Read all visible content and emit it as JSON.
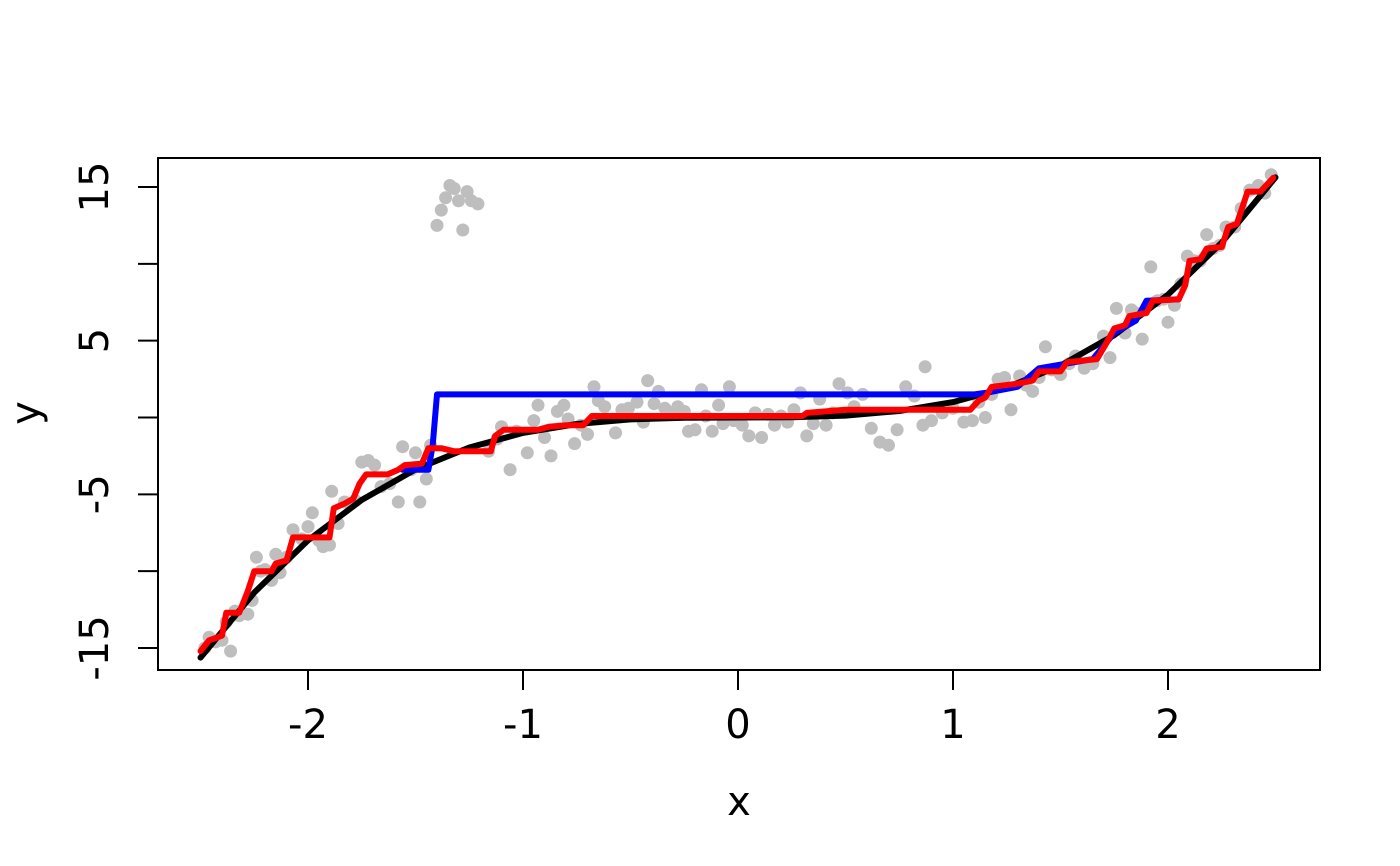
{
  "chart_data": {
    "type": "scatter",
    "title": "",
    "xlabel": "x",
    "ylabel": "y",
    "xlim": [
      -2.5,
      2.5
    ],
    "ylim": [
      -15,
      15
    ],
    "x_ticks": [
      -2,
      -1,
      0,
      1,
      2
    ],
    "x_tick_labels": [
      "-2",
      "-1",
      "0",
      "1",
      "2"
    ],
    "y_ticks": [
      -15,
      -10,
      -5,
      0,
      5,
      10,
      15
    ],
    "y_tick_labels": [
      "-15",
      "-5",
      "5",
      "15"
    ],
    "y_labeled_ticks": [
      -15,
      -5,
      5,
      15
    ],
    "grid": false,
    "legend": "none",
    "colors": {
      "points": "#bebebe",
      "truth": "#000000",
      "fit_blue": "#0000ff",
      "fit_red": "#ff0000"
    },
    "points": [
      [
        -2.48,
        -15.0
      ],
      [
        -2.46,
        -14.3
      ],
      [
        -2.43,
        -14.6
      ],
      [
        -2.4,
        -14.5
      ],
      [
        -2.38,
        -13.3
      ],
      [
        -2.36,
        -15.2
      ],
      [
        -2.34,
        -12.6
      ],
      [
        -2.32,
        -12.9
      ],
      [
        -2.28,
        -12.8
      ],
      [
        -2.26,
        -11.9
      ],
      [
        -2.24,
        -9.1
      ],
      [
        -2.22,
        -10.0
      ],
      [
        -2.2,
        -9.9
      ],
      [
        -2.17,
        -10.6
      ],
      [
        -2.15,
        -8.9
      ],
      [
        -2.13,
        -10.1
      ],
      [
        -2.1,
        -9.1
      ],
      [
        -2.07,
        -7.3
      ],
      [
        -2.03,
        -7.9
      ],
      [
        -2.0,
        -7.1
      ],
      [
        -1.98,
        -6.2
      ],
      [
        -1.95,
        -8.0
      ],
      [
        -1.93,
        -8.4
      ],
      [
        -1.9,
        -8.3
      ],
      [
        -1.89,
        -4.8
      ],
      [
        -1.86,
        -6.9
      ],
      [
        -1.83,
        -5.5
      ],
      [
        -1.8,
        -5.6
      ],
      [
        -1.78,
        -5.4
      ],
      [
        -1.75,
        -2.9
      ],
      [
        -1.72,
        -2.8
      ],
      [
        -1.69,
        -3.1
      ],
      [
        -1.66,
        -4.5
      ],
      [
        -1.62,
        -4.3
      ],
      [
        -1.58,
        -5.5
      ],
      [
        -1.56,
        -1.9
      ],
      [
        -1.52,
        -3.4
      ],
      [
        -1.5,
        -2.3
      ],
      [
        -1.48,
        -5.5
      ],
      [
        -1.45,
        -4.0
      ],
      [
        -1.43,
        -1.8
      ],
      [
        -1.4,
        12.5
      ],
      [
        -1.38,
        13.5
      ],
      [
        -1.36,
        14.3
      ],
      [
        -1.34,
        15.1
      ],
      [
        -1.32,
        14.9
      ],
      [
        -1.3,
        14.1
      ],
      [
        -1.28,
        12.2
      ],
      [
        -1.26,
        14.7
      ],
      [
        -1.24,
        14.1
      ],
      [
        -1.21,
        13.9
      ],
      [
        -1.16,
        -2.2
      ],
      [
        -1.12,
        -1.4
      ],
      [
        -1.1,
        -0.6
      ],
      [
        -1.06,
        -3.4
      ],
      [
        -1.03,
        -0.9
      ],
      [
        -0.98,
        -2.3
      ],
      [
        -0.95,
        -0.2
      ],
      [
        -0.93,
        0.8
      ],
      [
        -0.9,
        -1.3
      ],
      [
        -0.87,
        -2.5
      ],
      [
        -0.84,
        0.4
      ],
      [
        -0.81,
        0.8
      ],
      [
        -0.79,
        -0.1
      ],
      [
        -0.76,
        -1.7
      ],
      [
        -0.73,
        -0.5
      ],
      [
        -0.7,
        -1.1
      ],
      [
        -0.67,
        2.0
      ],
      [
        -0.65,
        1.1
      ],
      [
        -0.62,
        0.7
      ],
      [
        -0.57,
        -1.0
      ],
      [
        -0.54,
        0.5
      ],
      [
        -0.51,
        0.6
      ],
      [
        -0.47,
        1.0
      ],
      [
        -0.44,
        -0.3
      ],
      [
        -0.42,
        2.4
      ],
      [
        -0.39,
        0.9
      ],
      [
        -0.37,
        1.7
      ],
      [
        -0.34,
        0.6
      ],
      [
        -0.31,
        0.3
      ],
      [
        -0.28,
        0.7
      ],
      [
        -0.25,
        0.4
      ],
      [
        -0.23,
        -0.9
      ],
      [
        -0.2,
        -0.8
      ],
      [
        -0.17,
        1.8
      ],
      [
        -0.15,
        0.1
      ],
      [
        -0.12,
        -0.9
      ],
      [
        -0.09,
        0.8
      ],
      [
        -0.07,
        -0.4
      ],
      [
        -0.04,
        2.0
      ],
      [
        -0.02,
        -0.2
      ],
      [
        0.02,
        -0.5
      ],
      [
        0.05,
        -1.2
      ],
      [
        0.08,
        0.3
      ],
      [
        0.11,
        -1.3
      ],
      [
        0.14,
        0.2
      ],
      [
        0.17,
        -0.5
      ],
      [
        0.2,
        0.1
      ],
      [
        0.23,
        -0.3
      ],
      [
        0.26,
        0.5
      ],
      [
        0.29,
        1.6
      ],
      [
        0.32,
        -1.2
      ],
      [
        0.35,
        -0.4
      ],
      [
        0.38,
        1.2
      ],
      [
        0.41,
        -0.5
      ],
      [
        0.44,
        0.3
      ],
      [
        0.47,
        2.2
      ],
      [
        0.51,
        1.6
      ],
      [
        0.54,
        0.7
      ],
      [
        0.58,
        1.5
      ],
      [
        0.62,
        -0.7
      ],
      [
        0.66,
        -1.6
      ],
      [
        0.7,
        -1.8
      ],
      [
        0.74,
        -0.8
      ],
      [
        0.78,
        2.0
      ],
      [
        0.82,
        1.4
      ],
      [
        0.86,
        -0.5
      ],
      [
        0.9,
        -0.2
      ],
      [
        0.87,
        3.3
      ],
      [
        0.95,
        0.3
      ],
      [
        1.0,
        0.6
      ],
      [
        1.05,
        -0.3
      ],
      [
        1.09,
        -0.2
      ],
      [
        1.12,
        1.0
      ],
      [
        1.15,
        0.0
      ],
      [
        1.18,
        1.5
      ],
      [
        1.21,
        2.5
      ],
      [
        1.24,
        2.6
      ],
      [
        1.27,
        0.5
      ],
      [
        1.31,
        2.7
      ],
      [
        1.34,
        2.1
      ],
      [
        1.37,
        1.7
      ],
      [
        1.4,
        2.6
      ],
      [
        1.43,
        4.6
      ],
      [
        1.46,
        3.1
      ],
      [
        1.5,
        2.8
      ],
      [
        1.54,
        3.5
      ],
      [
        1.57,
        4.0
      ],
      [
        1.61,
        3.2
      ],
      [
        1.65,
        3.5
      ],
      [
        1.7,
        5.3
      ],
      [
        1.73,
        3.9
      ],
      [
        1.76,
        7.1
      ],
      [
        1.8,
        5.5
      ],
      [
        1.83,
        7.0
      ],
      [
        1.85,
        6.8
      ],
      [
        1.88,
        5.1
      ],
      [
        1.92,
        9.8
      ],
      [
        1.95,
        7.6
      ],
      [
        1.98,
        7.7
      ],
      [
        2.0,
        6.2
      ],
      [
        2.03,
        7.3
      ],
      [
        2.06,
        8.7
      ],
      [
        2.09,
        10.5
      ],
      [
        2.12,
        10.2
      ],
      [
        2.15,
        10.2
      ],
      [
        2.18,
        11.9
      ],
      [
        2.21,
        11.0
      ],
      [
        2.24,
        11.2
      ],
      [
        2.27,
        12.4
      ],
      [
        2.31,
        12.4
      ],
      [
        2.34,
        13.6
      ],
      [
        2.38,
        14.8
      ],
      [
        2.42,
        15.1
      ],
      [
        2.45,
        14.6
      ],
      [
        2.48,
        15.8
      ]
    ],
    "series": [
      {
        "color": "#ff0000",
        "values": [
          [
            -2.5,
            -15.2
          ],
          [
            -2.46,
            -14.5
          ],
          [
            -2.4,
            -14.2
          ],
          [
            -2.38,
            -12.7
          ],
          [
            -2.32,
            -12.7
          ],
          [
            -2.28,
            -11.3
          ],
          [
            -2.25,
            -10.0
          ],
          [
            -2.17,
            -10.0
          ],
          [
            -2.15,
            -9.5
          ],
          [
            -2.1,
            -9.3
          ],
          [
            -2.07,
            -7.8
          ],
          [
            -1.95,
            -7.8
          ],
          [
            -1.9,
            -7.8
          ],
          [
            -1.88,
            -5.9
          ],
          [
            -1.83,
            -5.6
          ],
          [
            -1.79,
            -5.3
          ],
          [
            -1.76,
            -4.3
          ],
          [
            -1.73,
            -3.7
          ],
          [
            -1.63,
            -3.7
          ],
          [
            -1.58,
            -3.4
          ],
          [
            -1.55,
            -3.1
          ],
          [
            -1.47,
            -3.0
          ],
          [
            -1.44,
            -2.0
          ],
          [
            -1.38,
            -2.0
          ],
          [
            -1.32,
            -2.2
          ],
          [
            -1.15,
            -2.2
          ],
          [
            -1.13,
            -1.2
          ],
          [
            -1.09,
            -0.8
          ],
          [
            -0.93,
            -0.8
          ],
          [
            -0.88,
            -0.6
          ],
          [
            -0.8,
            -0.5
          ],
          [
            -0.72,
            -0.5
          ],
          [
            -0.68,
            0.1
          ],
          [
            0.3,
            0.1
          ],
          [
            0.32,
            0.3
          ],
          [
            0.5,
            0.5
          ],
          [
            1.08,
            0.5
          ],
          [
            1.12,
            1.1
          ],
          [
            1.15,
            1.3
          ],
          [
            1.18,
            2.0
          ],
          [
            1.3,
            2.2
          ],
          [
            1.37,
            2.4
          ],
          [
            1.4,
            3.0
          ],
          [
            1.5,
            3.0
          ],
          [
            1.53,
            3.6
          ],
          [
            1.67,
            3.8
          ],
          [
            1.72,
            5.0
          ],
          [
            1.75,
            5.8
          ],
          [
            1.8,
            6.0
          ],
          [
            1.82,
            6.6
          ],
          [
            1.9,
            6.8
          ],
          [
            1.93,
            7.6
          ],
          [
            2.05,
            7.7
          ],
          [
            2.08,
            8.6
          ],
          [
            2.1,
            10.2
          ],
          [
            2.15,
            10.3
          ],
          [
            2.18,
            11.0
          ],
          [
            2.25,
            11.1
          ],
          [
            2.28,
            12.4
          ],
          [
            2.32,
            12.6
          ],
          [
            2.37,
            14.7
          ],
          [
            2.43,
            14.7
          ],
          [
            2.49,
            15.6
          ]
        ]
      },
      {
        "color": "#0000ff",
        "values": [
          [
            -1.56,
            -3.4
          ],
          [
            -1.53,
            -3.4
          ],
          [
            -1.48,
            -3.4
          ],
          [
            -1.44,
            -3.4
          ],
          [
            -1.42,
            -1.8
          ],
          [
            -1.4,
            1.5
          ],
          [
            1.1,
            1.5
          ],
          [
            1.15,
            1.6
          ],
          [
            1.3,
            2.0
          ],
          [
            1.4,
            3.2
          ],
          [
            1.65,
            3.8
          ],
          [
            1.75,
            5.5
          ],
          [
            1.85,
            6.3
          ],
          [
            1.9,
            7.6
          ],
          [
            2.05,
            7.7
          ]
        ]
      },
      {
        "color": "#000000",
        "values": [
          [
            -2.5,
            -15.625
          ],
          [
            -2.25,
            -11.39
          ],
          [
            -2.0,
            -8.0
          ],
          [
            -1.75,
            -5.36
          ],
          [
            -1.5,
            -3.375
          ],
          [
            -1.25,
            -1.95
          ],
          [
            -1.0,
            -1.0
          ],
          [
            -0.75,
            -0.42
          ],
          [
            -0.5,
            -0.125
          ],
          [
            -0.25,
            -0.016
          ],
          [
            0.0,
            0.0
          ],
          [
            0.25,
            0.016
          ],
          [
            0.5,
            0.125
          ],
          [
            0.75,
            0.42
          ],
          [
            1.0,
            1.0
          ],
          [
            1.25,
            1.95
          ],
          [
            1.5,
            3.375
          ],
          [
            1.75,
            5.36
          ],
          [
            2.0,
            8.0
          ],
          [
            2.25,
            11.39
          ],
          [
            2.5,
            15.625
          ]
        ]
      }
    ]
  }
}
